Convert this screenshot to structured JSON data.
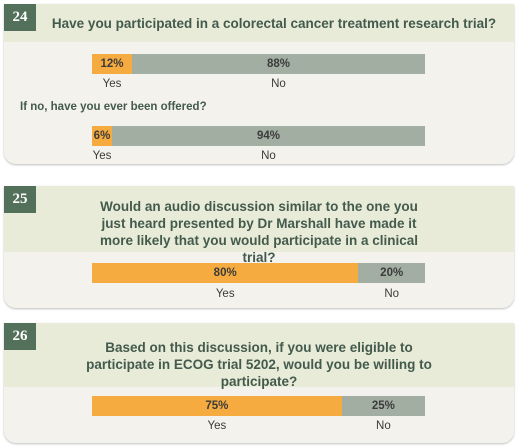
{
  "chart_data": [
    {
      "type": "bar",
      "question_number": "24",
      "title": "Have you participated in a colorectal cancer treatment research trial?",
      "categories": [
        "Yes",
        "No"
      ],
      "values": [
        12,
        88
      ],
      "data_labels": [
        "12%",
        "88%"
      ],
      "colors": [
        "#f5ab3f",
        "#a3aea3"
      ],
      "orientation": "horizontal-stacked"
    },
    {
      "type": "bar",
      "subtitle": "If no, have you ever been offered?",
      "categories": [
        "Yes",
        "No"
      ],
      "values": [
        6,
        94
      ],
      "data_labels": [
        "6%",
        "94%"
      ],
      "colors": [
        "#f5ab3f",
        "#a3aea3"
      ],
      "orientation": "horizontal-stacked"
    },
    {
      "type": "bar",
      "question_number": "25",
      "title": "Would an audio discussion similar to the one you just heard presented by Dr Marshall have made it more likely that you would participate in a clinical trial?",
      "categories": [
        "Yes",
        "No"
      ],
      "values": [
        80,
        20
      ],
      "data_labels": [
        "80%",
        "20%"
      ],
      "colors": [
        "#f5ab3f",
        "#a3aea3"
      ],
      "orientation": "horizontal-stacked"
    },
    {
      "type": "bar",
      "question_number": "26",
      "title": "Based on this discussion, if you were eligible to participate in ECOG trial 5202, would you be willing to participate?",
      "categories": [
        "Yes",
        "No"
      ],
      "values": [
        75,
        25
      ],
      "data_labels": [
        "75%",
        "25%"
      ],
      "colors": [
        "#f5ab3f",
        "#a3aea3"
      ],
      "orientation": "horizontal-stacked"
    }
  ]
}
